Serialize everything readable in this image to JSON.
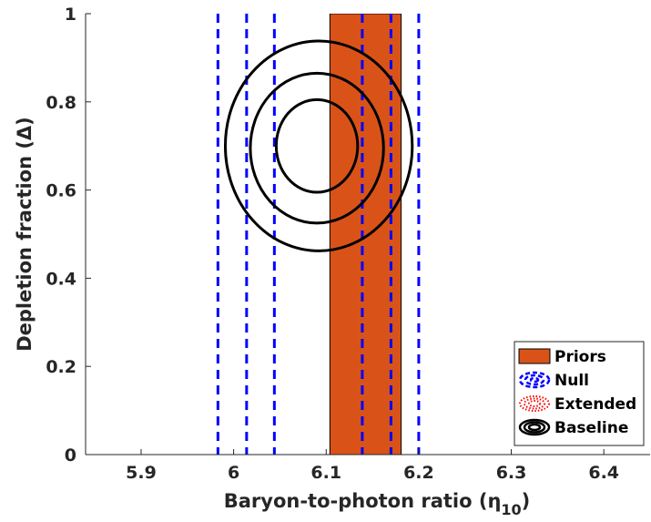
{
  "chart_data": {
    "type": "contour",
    "xlabel": "Baryon-to-photon ratio (η",
    "xlabel_sub": "10",
    "xlabel_close": ")",
    "ylabel": "Depletion fraction (Δ)",
    "xlim": [
      5.84,
      6.45
    ],
    "ylim": [
      0,
      1
    ],
    "xticks": [
      5.9,
      6.0,
      6.1,
      6.2,
      6.3,
      6.4
    ],
    "xtick_labels": [
      "5.9",
      "6",
      "6.1",
      "6.2",
      "6.3",
      "6.4"
    ],
    "yticks": [
      0,
      0.2,
      0.4,
      0.6,
      0.8,
      1.0
    ],
    "ytick_labels": [
      "0",
      "0.2",
      "0.4",
      "0.6",
      "0.8",
      "1"
    ],
    "grid": false,
    "legend_placement": "bottom-right",
    "priors": {
      "name": "Priors",
      "x_range": [
        6.104,
        6.181
      ],
      "y_range": [
        0,
        1
      ],
      "color": "#D95319"
    },
    "null_lines": {
      "name": "Null",
      "x": [
        5.983,
        6.014,
        6.044,
        6.139,
        6.17,
        6.2
      ],
      "color": "#0000FF"
    },
    "extended": {
      "name": "Extended",
      "color": "#FF0000"
    },
    "baseline_contours": {
      "name": "Baseline",
      "color": "#000000",
      "ellipses": [
        {
          "cx": 6.09,
          "cy": 0.7,
          "rx": 0.044,
          "ry": 0.105
        },
        {
          "cx": 6.09,
          "cy": 0.695,
          "rx": 0.072,
          "ry": 0.17
        },
        {
          "cx": 6.092,
          "cy": 0.7,
          "rx": 0.101,
          "ry": 0.238
        }
      ]
    },
    "legend": [
      "Priors",
      "Null",
      "Extended",
      "Baseline"
    ]
  }
}
